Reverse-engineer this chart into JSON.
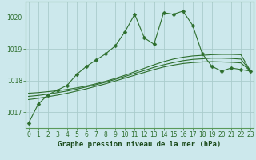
{
  "title": "Graphe pression niveau de la mer (hPa)",
  "background_color": "#cce8ec",
  "grid_color": "#b0d8dc",
  "line_color": "#2d6e2d",
  "x_hours": [
    0,
    1,
    2,
    3,
    4,
    5,
    6,
    7,
    8,
    9,
    10,
    11,
    12,
    13,
    14,
    15,
    16,
    17,
    18,
    19,
    20,
    21,
    22,
    23
  ],
  "main_data": [
    1016.65,
    1017.25,
    1017.55,
    1017.7,
    1017.85,
    1018.2,
    1018.45,
    1018.65,
    1018.85,
    1019.1,
    1019.55,
    1020.1,
    1019.35,
    1019.15,
    1020.15,
    1020.1,
    1020.2,
    1019.75,
    1018.85,
    1018.45,
    1018.3,
    1018.4,
    1018.35,
    1018.3
  ],
  "smooth1": [
    1017.6,
    1017.62,
    1017.65,
    1017.68,
    1017.72,
    1017.77,
    1017.83,
    1017.9,
    1017.98,
    1018.07,
    1018.17,
    1018.28,
    1018.39,
    1018.5,
    1018.6,
    1018.68,
    1018.74,
    1018.78,
    1018.8,
    1018.82,
    1018.83,
    1018.83,
    1018.82,
    1018.3
  ],
  "smooth2": [
    1017.5,
    1017.53,
    1017.57,
    1017.62,
    1017.67,
    1017.73,
    1017.8,
    1017.87,
    1017.95,
    1018.04,
    1018.13,
    1018.23,
    1018.32,
    1018.42,
    1018.5,
    1018.57,
    1018.63,
    1018.67,
    1018.69,
    1018.71,
    1018.71,
    1018.7,
    1018.68,
    1018.3
  ],
  "smooth3": [
    1017.4,
    1017.44,
    1017.49,
    1017.54,
    1017.6,
    1017.67,
    1017.74,
    1017.82,
    1017.9,
    1017.99,
    1018.08,
    1018.17,
    1018.26,
    1018.35,
    1018.43,
    1018.49,
    1018.54,
    1018.57,
    1018.59,
    1018.6,
    1018.59,
    1018.58,
    1018.56,
    1018.3
  ],
  "ylim": [
    1016.5,
    1020.5
  ],
  "yticks": [
    1017,
    1018,
    1019,
    1020
  ],
  "xlim": [
    -0.3,
    23.3
  ],
  "marker_size": 2.5,
  "linewidth": 0.8,
  "tick_fontsize": 5.5,
  "label_fontsize": 6.5
}
